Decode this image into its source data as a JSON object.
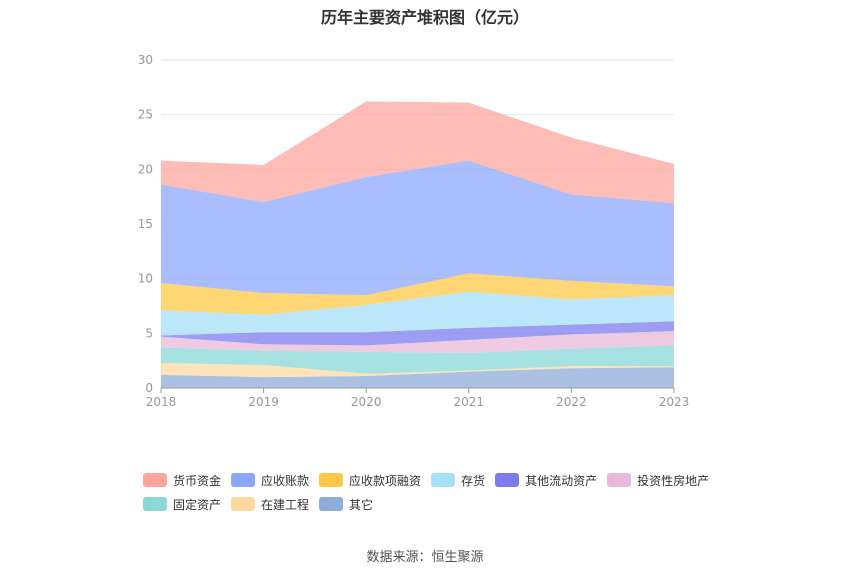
{
  "chart_data": {
    "type": "area",
    "stacked": true,
    "title": "历年主要资产堆积图（亿元）",
    "categories": [
      "2018",
      "2019",
      "2020",
      "2021",
      "2022",
      "2023"
    ],
    "ylim": [
      0,
      30
    ],
    "yticks": [
      "0",
      "5",
      "10",
      "15",
      "20",
      "25",
      "30"
    ],
    "grid": true,
    "legend_position": "bottom",
    "series": [
      {
        "name": "其它",
        "color": "#8eacd9",
        "values": [
          1.2,
          1.0,
          1.1,
          1.5,
          1.8,
          1.9
        ]
      },
      {
        "name": "在建工程",
        "color": "#fdd9a0",
        "values": [
          1.1,
          1.1,
          0.2,
          0.1,
          0.2,
          0.1
        ]
      },
      {
        "name": "固定资产",
        "color": "#8ad8d8",
        "values": [
          1.4,
          1.3,
          2.0,
          1.6,
          1.6,
          1.9
        ]
      },
      {
        "name": "投资性房地产",
        "color": "#eab9da",
        "values": [
          1.0,
          0.6,
          0.6,
          1.2,
          1.3,
          1.3
        ]
      },
      {
        "name": "其他流动资产",
        "color": "#7c7cf0",
        "values": [
          0.1,
          1.1,
          1.2,
          1.1,
          0.9,
          0.9
        ]
      },
      {
        "name": "存货",
        "color": "#a6dff8",
        "values": [
          2.3,
          1.6,
          2.5,
          3.3,
          2.3,
          2.4
        ]
      },
      {
        "name": "应收款项融资",
        "color": "#fec846",
        "values": [
          2.5,
          2.0,
          0.9,
          1.7,
          1.7,
          0.8
        ]
      },
      {
        "name": "应收账款",
        "color": "#8da7fb",
        "values": [
          9.0,
          8.3,
          10.8,
          10.3,
          7.9,
          7.6
        ]
      },
      {
        "name": "货币资金",
        "color": "#fca59c",
        "values": [
          2.2,
          3.4,
          6.9,
          5.3,
          5.2,
          3.6
        ]
      }
    ],
    "legend_order": [
      "货币资金",
      "应收账款",
      "应收款项融资",
      "存货",
      "其他流动资产",
      "投资性房地产",
      "固定资产",
      "在建工程",
      "其它"
    ]
  },
  "footer": {
    "source": "数据来源：恒生聚源"
  }
}
